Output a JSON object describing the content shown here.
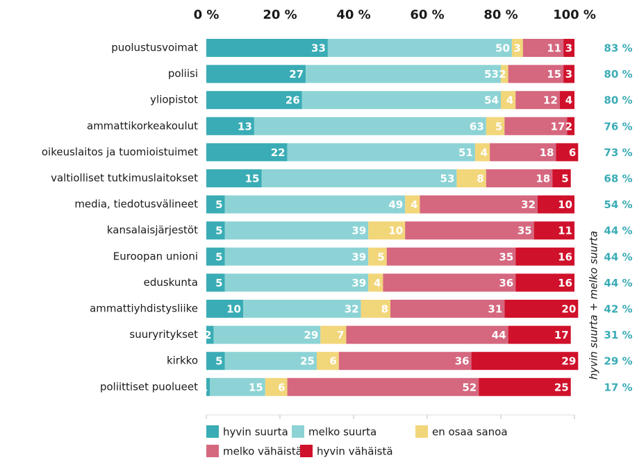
{
  "chart_data": {
    "type": "stacked-bar-horizontal",
    "categories": [
      "puolustusvoimat",
      "poliisi",
      "yliopistot",
      "ammattikorkeakoulut",
      "oikeuslaitos ja tuomioistuimet",
      "valtiolliset tutkimuslaitokset",
      "media, tiedotusvälineet",
      "kansalaisjärjestöt",
      "Euroopan unioni",
      "eduskunta",
      "ammattiyhdistysliike",
      "suuryritykset",
      "kirkko",
      "poliittiset puolueet"
    ],
    "series": [
      {
        "name": "hyvin suurta",
        "color": "#3aacb5",
        "values": [
          33,
          27,
          26,
          13,
          22,
          15,
          5,
          5,
          5,
          5,
          10,
          2,
          5,
          1
        ]
      },
      {
        "name": "melko suurta",
        "color": "#8dd3d5",
        "values": [
          50,
          53,
          54,
          63,
          51,
          53,
          49,
          39,
          39,
          39,
          32,
          29,
          25,
          15
        ]
      },
      {
        "name": "en osaa sanoa",
        "color": "#f2d67a",
        "values": [
          3,
          2,
          4,
          5,
          4,
          8,
          4,
          10,
          5,
          4,
          8,
          7,
          6,
          6
        ]
      },
      {
        "name": "melko vähäistä",
        "color": "#d5677f",
        "values": [
          11,
          15,
          12,
          17,
          18,
          18,
          32,
          35,
          35,
          36,
          31,
          44,
          36,
          52
        ]
      },
      {
        "name": "hyvin vähäistä",
        "color": "#d0112b",
        "values": [
          3,
          3,
          4,
          2,
          6,
          5,
          10,
          11,
          16,
          16,
          20,
          17,
          29,
          25
        ]
      }
    ],
    "xlim": [
      0,
      100
    ],
    "xticks": [
      {
        "value": 0,
        "label": "0 %"
      },
      {
        "value": 20,
        "label": "20 %"
      },
      {
        "value": 40,
        "label": "40 %"
      },
      {
        "value": 60,
        "label": "60 %"
      },
      {
        "value": 80,
        "label": "80 %"
      },
      {
        "value": 100,
        "label": "100 %"
      }
    ],
    "totals_label": "hyvin suurta + melko suurta",
    "totals": [
      {
        "value": 83,
        "label": "83 %"
      },
      {
        "value": 80,
        "label": "80 %"
      },
      {
        "value": 80,
        "label": "80 %"
      },
      {
        "value": 76,
        "label": "76 %"
      },
      {
        "value": 73,
        "label": "73 %"
      },
      {
        "value": 68,
        "label": "68 %"
      },
      {
        "value": 54,
        "label": "54 %"
      },
      {
        "value": 44,
        "label": "44 %"
      },
      {
        "value": 44,
        "label": "44 %"
      },
      {
        "value": 44,
        "label": "44 %"
      },
      {
        "value": 42,
        "label": "42 %"
      },
      {
        "value": 31,
        "label": "31 %"
      },
      {
        "value": 29,
        "label": "29 %"
      },
      {
        "value": 17,
        "label": "17 %"
      }
    ],
    "totals_color": "#3aacb5"
  }
}
